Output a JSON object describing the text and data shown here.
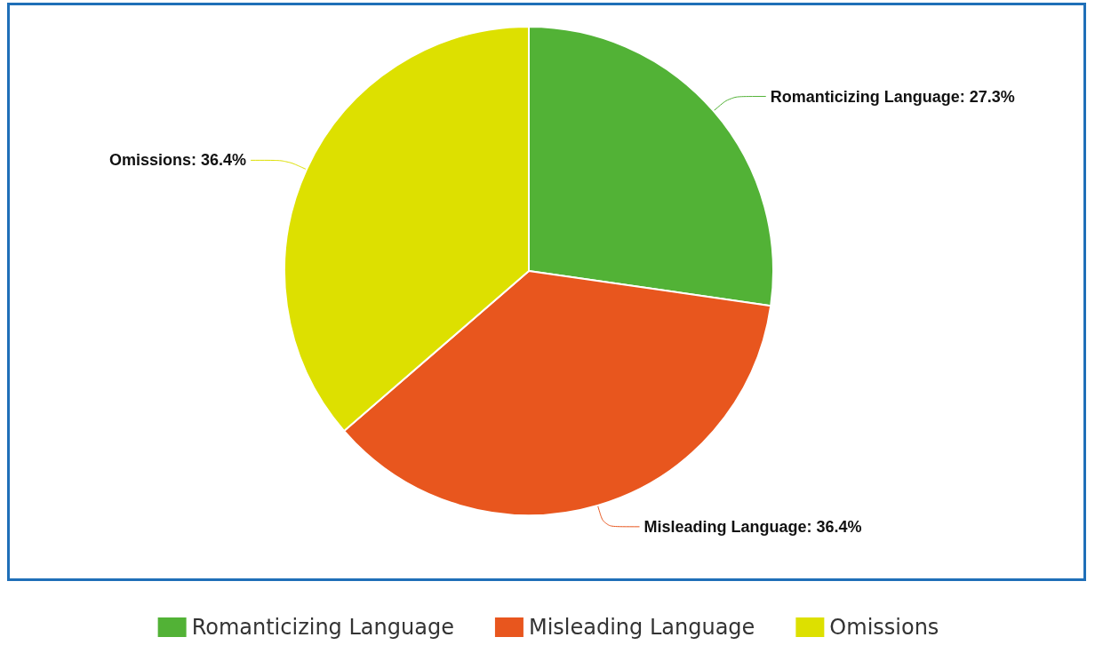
{
  "chart_data": {
    "type": "pie",
    "categories": [
      "Romanticizing Language",
      "Misleading Language",
      "Omissions"
    ],
    "values": [
      27.3,
      36.4,
      36.4
    ],
    "value_labels": [
      "Romanticizing Language: 27.3%",
      "Misleading Language: 36.4%",
      "Omissions: 36.4%"
    ],
    "colors": [
      "#52b236",
      "#e8561e",
      "#dde000"
    ],
    "legend": "bottom"
  }
}
